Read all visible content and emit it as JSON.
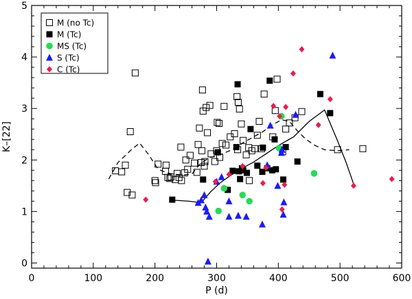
{
  "chart_data": {
    "type": "scatter",
    "title": "",
    "xlabel": "P (d)",
    "ylabel": "K–[22]",
    "xlim": [
      0,
      600
    ],
    "ylim": [
      -0.1,
      5
    ],
    "x_ticks": [
      0,
      100,
      200,
      300,
      400,
      500,
      600
    ],
    "y_ticks": [
      0,
      1,
      2,
      3,
      4,
      5
    ],
    "legend_position": "top-left",
    "colors": {
      "black": "#000000",
      "green": "#22dd55",
      "blue": "#1a1aff",
      "red": "#ee1c4a"
    },
    "series": [
      {
        "name": "M (no Tc)",
        "marker": "open-square",
        "color": "#000000",
        "points": [
          [
            136,
            1.79
          ],
          [
            146,
            1.77
          ],
          [
            152,
            1.9
          ],
          [
            155,
            1.37
          ],
          [
            160,
            2.55
          ],
          [
            163,
            1.32
          ],
          [
            168,
            3.69
          ],
          [
            200,
            1.6
          ],
          [
            201,
            1.56
          ],
          [
            205,
            1.92
          ],
          [
            217,
            1.78
          ],
          [
            218,
            1.9
          ],
          [
            221,
            1.66
          ],
          [
            224,
            1.64
          ],
          [
            226,
            1.67
          ],
          [
            233,
            1.62
          ],
          [
            236,
            1.74
          ],
          [
            239,
            1.66
          ],
          [
            242,
            2.25
          ],
          [
            243,
            1.6
          ],
          [
            248,
            1.75
          ],
          [
            250,
            2.0
          ],
          [
            253,
            1.82
          ],
          [
            257,
            2.09
          ],
          [
            264,
            1.94
          ],
          [
            268,
            1.76
          ],
          [
            270,
            2.3
          ],
          [
            272,
            2.62
          ],
          [
            275,
            1.95
          ],
          [
            276,
            2.18
          ],
          [
            277,
            3.36
          ],
          [
            278,
            2.95
          ],
          [
            280,
            1.88
          ],
          [
            281,
            1.97
          ],
          [
            283,
            3.02
          ],
          [
            285,
            2.53
          ],
          [
            289,
            3.06
          ],
          [
            291,
            2.12
          ],
          [
            297,
            1.97
          ],
          [
            300,
            2.18
          ],
          [
            301,
            2.73
          ],
          [
            304,
            2.71
          ],
          [
            305,
            2.05
          ],
          [
            309,
            2.32
          ],
          [
            312,
            3.04
          ],
          [
            315,
            2.29
          ],
          [
            322,
            2.45
          ],
          [
            329,
            2.51
          ],
          [
            333,
            3.23
          ],
          [
            334,
            2.2
          ],
          [
            335,
            3.12
          ],
          [
            337,
            2.99
          ],
          [
            340,
            2.7
          ],
          [
            343,
            2.38
          ],
          [
            348,
            2.1
          ],
          [
            352,
            2.24
          ],
          [
            353,
            1.6
          ],
          [
            357,
            2.18
          ],
          [
            362,
            2.22
          ],
          [
            366,
            2.48
          ],
          [
            369,
            2.75
          ],
          [
            373,
            2.22
          ],
          [
            377,
            3.28
          ],
          [
            391,
            2.45
          ],
          [
            395,
            2.96
          ],
          [
            398,
            3.57
          ],
          [
            407,
            2.16
          ],
          [
            412,
            2.6
          ],
          [
            418,
            2.72
          ],
          [
            427,
            2.82
          ],
          [
            438,
            2.94
          ],
          [
            496,
            2.2
          ],
          [
            537,
            2.22
          ]
        ]
      },
      {
        "name": "M (Tc)",
        "marker": "filled-square",
        "color": "#000000",
        "points": [
          [
            228,
            1.23
          ],
          [
            278,
            1.62
          ],
          [
            302,
            2.15
          ],
          [
            318,
            1.42
          ],
          [
            326,
            1.79
          ],
          [
            332,
            2.25
          ],
          [
            334,
            3.47
          ],
          [
            336,
            1.78
          ],
          [
            338,
            1.63
          ],
          [
            341,
            1.84
          ],
          [
            343,
            1.8
          ],
          [
            349,
            1.75
          ],
          [
            355,
            2.6
          ],
          [
            366,
            1.89
          ],
          [
            374,
            1.77
          ],
          [
            375,
            2.24
          ],
          [
            382,
            1.84
          ],
          [
            386,
            3.54
          ],
          [
            390,
            1.8
          ],
          [
            394,
            2.4
          ],
          [
            396,
            1.82
          ],
          [
            408,
            1.62
          ],
          [
            412,
            2.25
          ],
          [
            431,
            1.97
          ],
          [
            468,
            3.28
          ],
          [
            484,
            2.91
          ]
        ]
      },
      {
        "name": "MS (Tc)",
        "marker": "filled-circle",
        "color": "#22dd55",
        "points": [
          [
            303,
            1.01
          ],
          [
            312,
            1.45
          ],
          [
            342,
            1.32
          ],
          [
            353,
            1.2
          ],
          [
            401,
            2.23
          ],
          [
            405,
            2.85
          ],
          [
            458,
            1.74
          ]
        ]
      },
      {
        "name": "S (Tc)",
        "marker": "filled-triangle",
        "color": "#1a1aff",
        "points": [
          [
            270,
            1.17
          ],
          [
            275,
            1.22
          ],
          [
            280,
            1.32
          ],
          [
            282,
            1.08
          ],
          [
            284,
            1.0
          ],
          [
            286,
            0.03
          ],
          [
            288,
            0.9
          ],
          [
            300,
            1.58
          ],
          [
            308,
            1.67
          ],
          [
            320,
            1.2
          ],
          [
            320,
            0.9
          ],
          [
            335,
            0.92
          ],
          [
            348,
            0.9
          ],
          [
            374,
            0.75
          ],
          [
            382,
            1.9
          ],
          [
            387,
            2.67
          ],
          [
            399,
            1.5
          ],
          [
            405,
            2.14
          ],
          [
            406,
            2.2
          ],
          [
            408,
            0.94
          ],
          [
            409,
            1.18
          ],
          [
            428,
            2.88
          ],
          [
            488,
            4.03
          ]
        ]
      },
      {
        "name": "C (Tc)",
        "marker": "filled-diamond",
        "color": "#ee1c4a",
        "points": [
          [
            185,
            1.23
          ],
          [
            298,
            1.58
          ],
          [
            320,
            1.72
          ],
          [
            342,
            1.88
          ],
          [
            375,
            1.55
          ],
          [
            380,
            1.85
          ],
          [
            392,
            3.05
          ],
          [
            402,
            2.85
          ],
          [
            406,
            1.04
          ],
          [
            410,
            1.52
          ],
          [
            412,
            3.03
          ],
          [
            424,
            3.68
          ],
          [
            438,
            4.15
          ],
          [
            465,
            2.68
          ],
          [
            484,
            3.18
          ],
          [
            522,
            1.5
          ],
          [
            584,
            1.63
          ]
        ]
      }
    ],
    "lines": [
      {
        "name": "dashed-curve",
        "style": "dashed",
        "color": "#000000",
        "points": [
          [
            125,
            1.63
          ],
          [
            140,
            1.95
          ],
          [
            160,
            2.18
          ],
          [
            175,
            2.33
          ],
          [
            190,
            2.1
          ],
          [
            205,
            1.82
          ],
          [
            220,
            1.75
          ],
          [
            240,
            1.7
          ],
          [
            260,
            1.73
          ],
          [
            275,
            1.95
          ],
          [
            290,
            2.05
          ],
          [
            305,
            2.1
          ],
          [
            325,
            2.2
          ],
          [
            345,
            2.35
          ],
          [
            360,
            2.45
          ],
          [
            375,
            2.55
          ],
          [
            390,
            2.68
          ],
          [
            405,
            2.78
          ],
          [
            418,
            2.75
          ],
          [
            432,
            2.55
          ],
          [
            445,
            2.4
          ],
          [
            460,
            2.28
          ],
          [
            475,
            2.2
          ],
          [
            495,
            2.18
          ],
          [
            515,
            2.2
          ]
        ]
      },
      {
        "name": "solid-curve",
        "style": "solid",
        "color": "#000000",
        "points": [
          [
            230,
            1.22
          ],
          [
            255,
            1.2
          ],
          [
            275,
            1.17
          ],
          [
            290,
            1.38
          ],
          [
            305,
            1.55
          ],
          [
            320,
            1.68
          ],
          [
            340,
            1.83
          ],
          [
            360,
            1.96
          ],
          [
            380,
            2.12
          ],
          [
            400,
            2.28
          ],
          [
            425,
            2.45
          ],
          [
            450,
            2.75
          ],
          [
            475,
            2.97
          ],
          [
            495,
            2.4
          ],
          [
            510,
            1.95
          ],
          [
            523,
            1.5
          ]
        ]
      }
    ]
  }
}
